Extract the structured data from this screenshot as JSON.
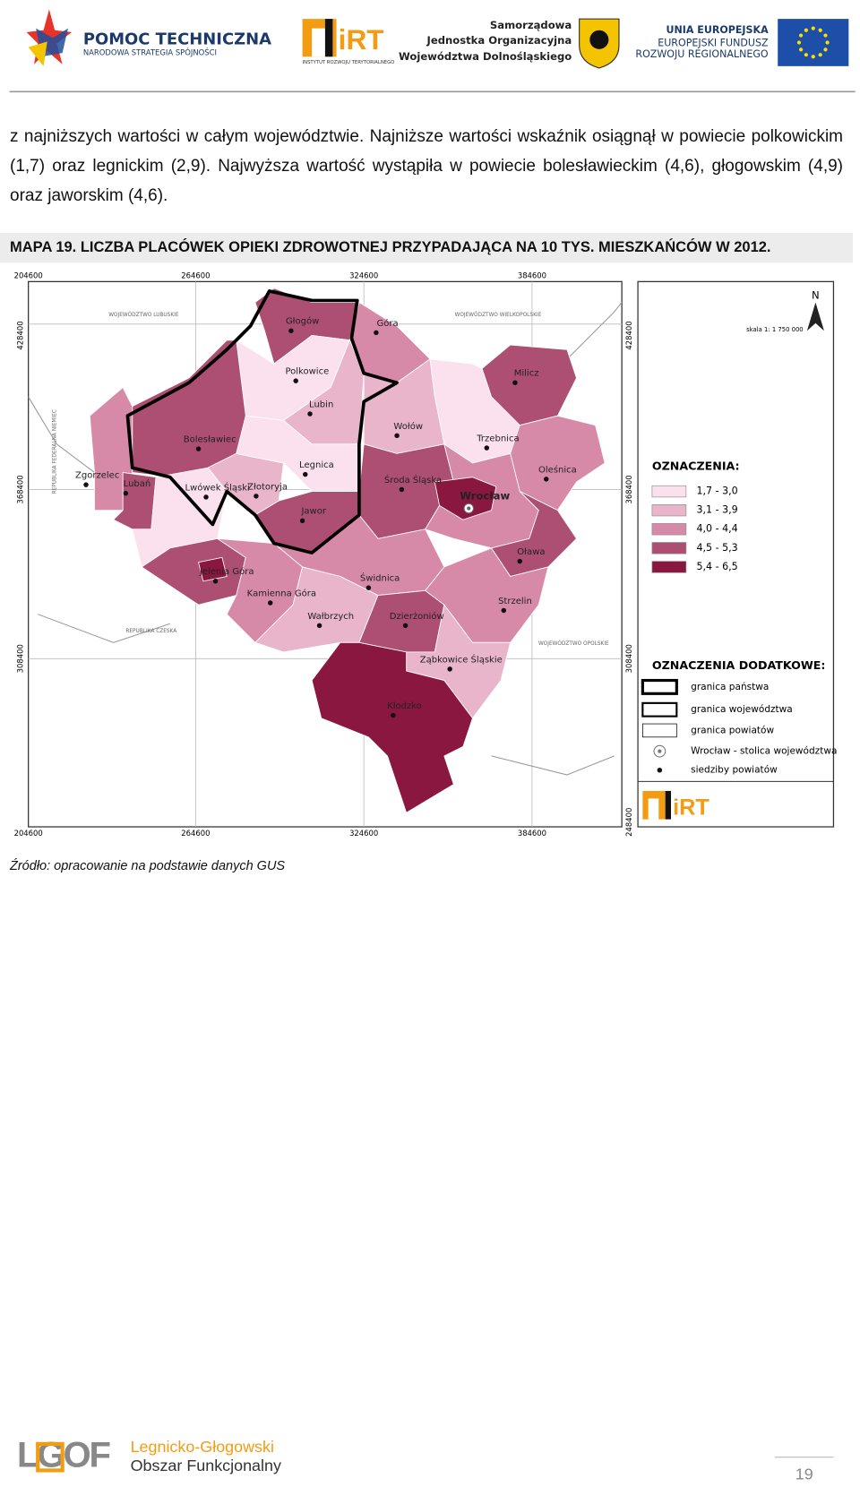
{
  "header": {
    "logo_pomoc": {
      "title": "POMOC TECHNICZNA",
      "subtitle": "NARODOWA STRATEGIA SPÓJNOŚCI"
    },
    "logo_irt": {
      "title": "iRT",
      "subtitle": "INSTYTUT ROZWOJU TERYTORIALNEGO"
    },
    "logo_samorzad": [
      "Samorządowa",
      "Jednostka Organizacyjna",
      "Województwa Dolnośląskiego"
    ],
    "logo_ue": [
      "UNIA EUROPEJSKA",
      "EUROPEJSKI FUNDUSZ",
      "ROZWOJU REGIONALNEGO"
    ]
  },
  "paragraph": "z najniższych wartości w całym województwie. Najniższe wartości wskaźnik osiągnął w powiecie polkowickim (1,7) oraz legnickim (2,9). Najwyższa wartość wystąpiła w powiecie bolesławieckim (4,6), głogowskim (4,9) oraz jaworskim (4,6).",
  "caption": "MAPA 19. LICZBA PLACÓWEK OPIEKI ZDROWOTNEJ PRZYPADAJĄCA NA  10 TYS. MIESZKAŃCÓW W 2012.",
  "map": {
    "coords_top": [
      "204600",
      "264600",
      "324600",
      "384600"
    ],
    "coords_bottom": [
      "204600",
      "264600",
      "324600",
      "384600"
    ],
    "coords_left": [
      "428400",
      "368400",
      "308400"
    ],
    "coords_right": [
      "428400",
      "368400",
      "308400",
      "248400"
    ],
    "regions": [
      "WOJEWÓDZTWO LUBUSKIE",
      "WOJEWÓDZTWO WIELKOPOLSKIE",
      "REPUBLIKA FEDERALNA NIEMIEC",
      "REPUBLIKA CZESKA",
      "WOJEWÓDZTWO OPOLSKIE"
    ],
    "cities": [
      "Głogów",
      "Góra",
      "Polkowice",
      "Lubin",
      "Milicz",
      "Wołów",
      "Trzebnica",
      "Bolesławiec",
      "Legnica",
      "Oleśnica",
      "Zgorzelec",
      "Środa Śląska",
      "Wrocław",
      "Lubań",
      "Lwówek Śląski",
      "Złotoryja",
      "Jawor",
      "Oława",
      "Jelenia Góra",
      "Świdnica",
      "Kamienna Góra",
      "Strzelin",
      "Wałbrzych",
      "Dzierżoniów",
      "Ząbkowice Śląskie",
      "Kłodzko"
    ],
    "north": "N",
    "scale": "skala 1: 1 750 000",
    "legend": {
      "title": "OZNACZENIA:",
      "items": [
        {
          "label": "1,7 - 3,0",
          "color": "#fbe1ee"
        },
        {
          "label": "3,1 - 3,9",
          "color": "#e8b5cb"
        },
        {
          "label": "4,0 - 4,4",
          "color": "#d68aa8"
        },
        {
          "label": "4,5 - 5,3",
          "color": "#ad4f72"
        },
        {
          "label": "5,4 - 6,5",
          "color": "#8a1740"
        }
      ]
    },
    "legend_extra": {
      "title": "OZNACZENIA DODATKOWE:",
      "items": [
        "granica państwa",
        "granica województwa",
        "granica powiatów",
        "Wrocław - stolica województwa",
        "siedziby powiatów"
      ]
    },
    "logo": "iRT"
  },
  "source": "Źródło: opracowanie na podstawie danych GUS",
  "footer": {
    "logo": "LGOF",
    "line1": "Legnicko-Głogowski",
    "line2": "Obszar Funkcjonalny",
    "page": "19"
  }
}
